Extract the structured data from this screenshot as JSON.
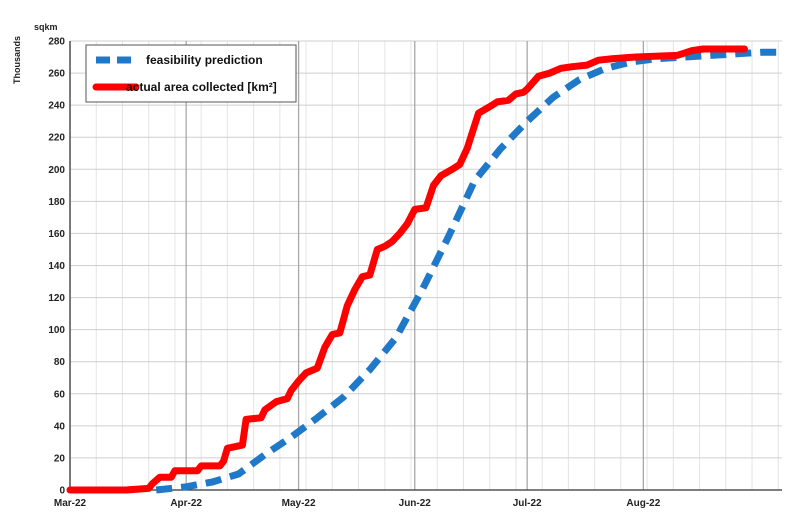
{
  "chart_data": {
    "type": "line",
    "title": "",
    "xlabel": "",
    "ylabel": "Thousands",
    "y_unit": "sqkm",
    "xlim": [
      "2022-03-01",
      "2022-09-07"
    ],
    "ylim": [
      0,
      280
    ],
    "x_ticks": [
      {
        "date": "2022-03-01",
        "label": "Mar-22"
      },
      {
        "date": "2022-04-01",
        "label": "Apr-22"
      },
      {
        "date": "2022-05-01",
        "label": "May-22"
      },
      {
        "date": "2022-06-01",
        "label": "Jun-22"
      },
      {
        "date": "2022-07-01",
        "label": "Jul-22"
      },
      {
        "date": "2022-08-01",
        "label": "Aug-22"
      }
    ],
    "y_ticks": [
      0,
      20,
      40,
      60,
      80,
      100,
      120,
      140,
      160,
      180,
      200,
      220,
      240,
      260,
      280
    ],
    "grid": true,
    "legend_position": "top-left",
    "series": [
      {
        "name": "feasibility prediction",
        "color": "#1f78c8",
        "style": "dashed",
        "points": [
          [
            "2022-03-24",
            0
          ],
          [
            "2022-04-01",
            2
          ],
          [
            "2022-04-08",
            5
          ],
          [
            "2022-04-15",
            10
          ],
          [
            "2022-04-22",
            22
          ],
          [
            "2022-04-29",
            33
          ],
          [
            "2022-05-06",
            45
          ],
          [
            "2022-05-13",
            58
          ],
          [
            "2022-05-20",
            75
          ],
          [
            "2022-05-27",
            95
          ],
          [
            "2022-06-03",
            125
          ],
          [
            "2022-06-10",
            158
          ],
          [
            "2022-06-17",
            193
          ],
          [
            "2022-06-24",
            213
          ],
          [
            "2022-07-01",
            230
          ],
          [
            "2022-07-08",
            245
          ],
          [
            "2022-07-15",
            256
          ],
          [
            "2022-07-22",
            263
          ],
          [
            "2022-07-29",
            267
          ],
          [
            "2022-08-05",
            269
          ],
          [
            "2022-08-12",
            270
          ],
          [
            "2022-08-19",
            271
          ],
          [
            "2022-08-26",
            272
          ],
          [
            "2022-09-02",
            273
          ],
          [
            "2022-09-07",
            273
          ]
        ]
      },
      {
        "name": "actual area collected [km²]",
        "color": "#ff0000",
        "style": "solid",
        "points": [
          [
            "2022-03-01",
            0
          ],
          [
            "2022-03-16",
            0
          ],
          [
            "2022-03-22",
            1
          ],
          [
            "2022-03-23",
            4
          ],
          [
            "2022-03-25",
            8
          ],
          [
            "2022-03-28",
            8
          ],
          [
            "2022-03-29",
            12
          ],
          [
            "2022-04-04",
            12
          ],
          [
            "2022-04-05",
            15
          ],
          [
            "2022-04-10",
            15
          ],
          [
            "2022-04-11",
            18
          ],
          [
            "2022-04-12",
            26
          ],
          [
            "2022-04-16",
            28
          ],
          [
            "2022-04-17",
            44
          ],
          [
            "2022-04-21",
            45
          ],
          [
            "2022-04-22",
            50
          ],
          [
            "2022-04-25",
            55
          ],
          [
            "2022-04-28",
            57
          ],
          [
            "2022-04-29",
            62
          ],
          [
            "2022-05-01",
            68
          ],
          [
            "2022-05-03",
            73
          ],
          [
            "2022-05-06",
            76
          ],
          [
            "2022-05-08",
            89
          ],
          [
            "2022-05-10",
            97
          ],
          [
            "2022-05-12",
            98
          ],
          [
            "2022-05-14",
            115
          ],
          [
            "2022-05-16",
            125
          ],
          [
            "2022-05-18",
            133
          ],
          [
            "2022-05-20",
            134
          ],
          [
            "2022-05-22",
            150
          ],
          [
            "2022-05-24",
            152
          ],
          [
            "2022-05-26",
            155
          ],
          [
            "2022-05-28",
            160
          ],
          [
            "2022-05-30",
            166
          ],
          [
            "2022-06-01",
            175
          ],
          [
            "2022-06-04",
            176
          ],
          [
            "2022-06-06",
            190
          ],
          [
            "2022-06-08",
            196
          ],
          [
            "2022-06-11",
            200
          ],
          [
            "2022-06-13",
            203
          ],
          [
            "2022-06-15",
            213
          ],
          [
            "2022-06-18",
            235
          ],
          [
            "2022-06-21",
            239
          ],
          [
            "2022-06-23",
            242
          ],
          [
            "2022-06-26",
            243
          ],
          [
            "2022-06-28",
            247
          ],
          [
            "2022-06-30",
            248
          ],
          [
            "2022-07-01",
            250
          ],
          [
            "2022-07-04",
            258
          ],
          [
            "2022-07-07",
            260
          ],
          [
            "2022-07-10",
            263
          ],
          [
            "2022-07-13",
            264
          ],
          [
            "2022-07-17",
            265
          ],
          [
            "2022-07-20",
            268
          ],
          [
            "2022-07-24",
            269
          ],
          [
            "2022-07-30",
            270
          ],
          [
            "2022-08-10",
            271
          ],
          [
            "2022-08-14",
            274
          ],
          [
            "2022-08-17",
            275
          ],
          [
            "2022-08-25",
            275
          ],
          [
            "2022-08-28",
            275
          ]
        ]
      }
    ]
  }
}
